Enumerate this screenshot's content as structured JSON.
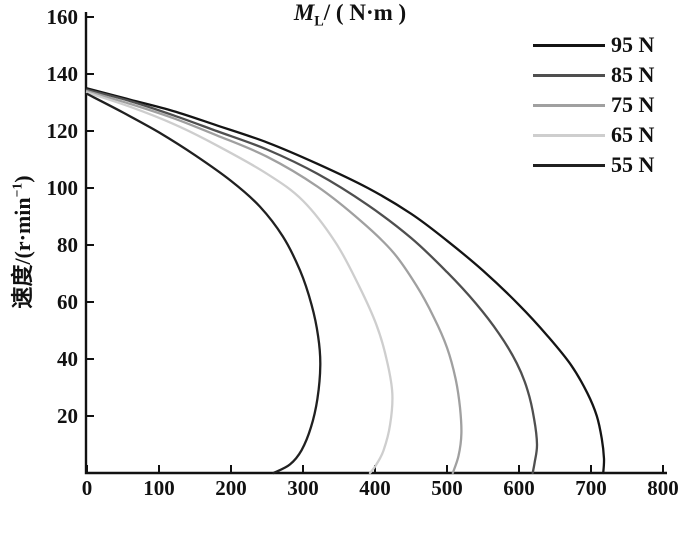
{
  "figure": {
    "background": "#ffffff",
    "text_color": "#111111",
    "axis_color": "#111111"
  },
  "chart_data": {
    "type": "line",
    "title": "",
    "xlabel": {
      "var": "M",
      "sub": "L",
      "rest": "/ ( N·m )"
    },
    "ylabel": {
      "prefix": "速度/(r·min",
      "sup": "−1",
      "suffix": ")"
    },
    "xlim": [
      0,
      800
    ],
    "ylim": [
      0,
      160
    ],
    "xticks": [
      0,
      100,
      200,
      300,
      400,
      500,
      600,
      700,
      800
    ],
    "yticks": [
      20,
      40,
      60,
      80,
      100,
      120,
      140,
      160
    ],
    "grid": false,
    "legend_position": "top-right",
    "series": [
      {
        "name": "95 N",
        "color": "#141414",
        "points": [
          [
            0,
            135
          ],
          [
            60,
            131
          ],
          [
            120,
            127
          ],
          [
            180,
            122
          ],
          [
            250,
            116
          ],
          [
            320,
            108.5
          ],
          [
            390,
            100
          ],
          [
            450,
            91
          ],
          [
            500,
            81.5
          ],
          [
            550,
            71
          ],
          [
            600,
            59
          ],
          [
            640,
            48
          ],
          [
            672,
            38
          ],
          [
            695,
            28
          ],
          [
            708,
            20
          ],
          [
            715,
            12
          ],
          [
            718,
            5
          ],
          [
            717,
            0
          ]
        ]
      },
      {
        "name": "85 N",
        "color": "#4f4f4f",
        "points": [
          [
            0,
            134.5
          ],
          [
            60,
            130.5
          ],
          [
            120,
            125.5
          ],
          [
            180,
            120
          ],
          [
            250,
            113.5
          ],
          [
            320,
            105
          ],
          [
            390,
            94
          ],
          [
            450,
            82.5
          ],
          [
            500,
            70.5
          ],
          [
            540,
            59.5
          ],
          [
            572,
            49
          ],
          [
            597,
            38.5
          ],
          [
            612,
            29
          ],
          [
            621,
            19
          ],
          [
            625,
            10
          ],
          [
            622,
            4
          ],
          [
            619,
            0
          ]
        ]
      },
      {
        "name": "75 N",
        "color": "#a0a0a0",
        "points": [
          [
            0,
            134
          ],
          [
            60,
            129.5
          ],
          [
            120,
            124.5
          ],
          [
            180,
            118.5
          ],
          [
            250,
            111
          ],
          [
            320,
            100.5
          ],
          [
            380,
            88.5
          ],
          [
            425,
            77.5
          ],
          [
            457,
            66
          ],
          [
            482,
            54.5
          ],
          [
            500,
            44
          ],
          [
            512,
            33
          ],
          [
            518,
            23
          ],
          [
            520,
            14
          ],
          [
            516,
            6
          ],
          [
            508,
            0
          ]
        ]
      },
      {
        "name": "65 N",
        "color": "#cecece",
        "points": [
          [
            0,
            133.5
          ],
          [
            60,
            128.5
          ],
          [
            120,
            122.5
          ],
          [
            180,
            115
          ],
          [
            250,
            105
          ],
          [
            300,
            95.5
          ],
          [
            345,
            81
          ],
          [
            378,
            65.5
          ],
          [
            402,
            52
          ],
          [
            416,
            40
          ],
          [
            424,
            28
          ],
          [
            421,
            17
          ],
          [
            412,
            8
          ],
          [
            402,
            3
          ],
          [
            393,
            0
          ]
        ]
      },
      {
        "name": "55 N",
        "color": "#202020",
        "points": [
          [
            0,
            133
          ],
          [
            50,
            126.5
          ],
          [
            100,
            119.5
          ],
          [
            150,
            111.5
          ],
          [
            200,
            102.5
          ],
          [
            240,
            93.5
          ],
          [
            272,
            83
          ],
          [
            296,
            71
          ],
          [
            312,
            59
          ],
          [
            321,
            48
          ],
          [
            324,
            38
          ],
          [
            320,
            26
          ],
          [
            311,
            16
          ],
          [
            298,
            8
          ],
          [
            282,
            3
          ],
          [
            259,
            0
          ]
        ]
      }
    ]
  }
}
